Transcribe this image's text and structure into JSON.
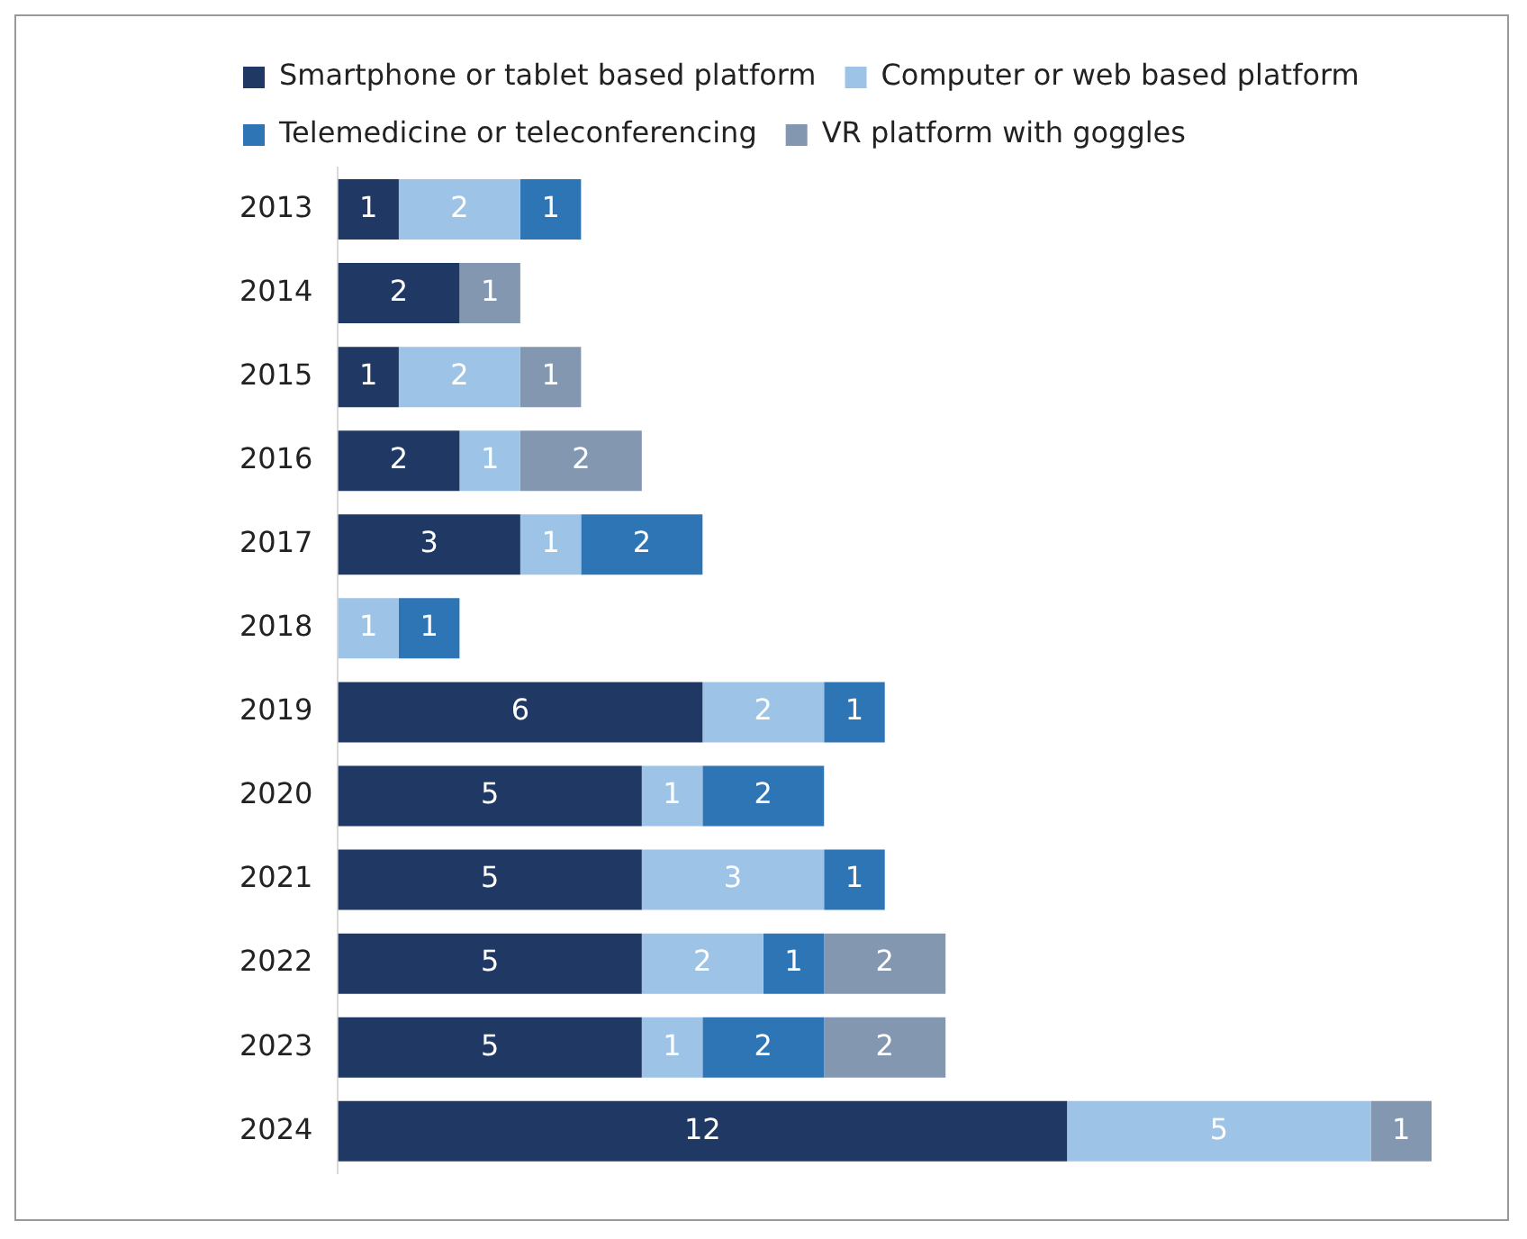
{
  "chart_data": {
    "type": "bar",
    "orientation": "horizontal",
    "stacked": true,
    "data_labels": true,
    "legend": "top",
    "categories": [
      "2013",
      "2014",
      "2015",
      "2016",
      "2017",
      "2018",
      "2019",
      "2020",
      "2021",
      "2022",
      "2023",
      "2024"
    ],
    "series": [
      {
        "name": "Smartphone or tablet based platform",
        "color": "#1f3864",
        "values": [
          1,
          2,
          1,
          2,
          3,
          null,
          6,
          5,
          5,
          5,
          5,
          12
        ]
      },
      {
        "name": "Computer or web based platform",
        "color": "#9dc3e6",
        "values": [
          2,
          null,
          2,
          1,
          1,
          1,
          2,
          1,
          3,
          2,
          1,
          5
        ]
      },
      {
        "name": "Telemedicine or teleconferencing",
        "color": "#2e75b6",
        "values": [
          1,
          null,
          null,
          null,
          2,
          1,
          1,
          2,
          1,
          1,
          2,
          null
        ]
      },
      {
        "name": "VR platform with goggles",
        "color": "#8497b0",
        "values": [
          null,
          1,
          1,
          2,
          null,
          null,
          null,
          null,
          null,
          2,
          2,
          1
        ]
      }
    ]
  }
}
